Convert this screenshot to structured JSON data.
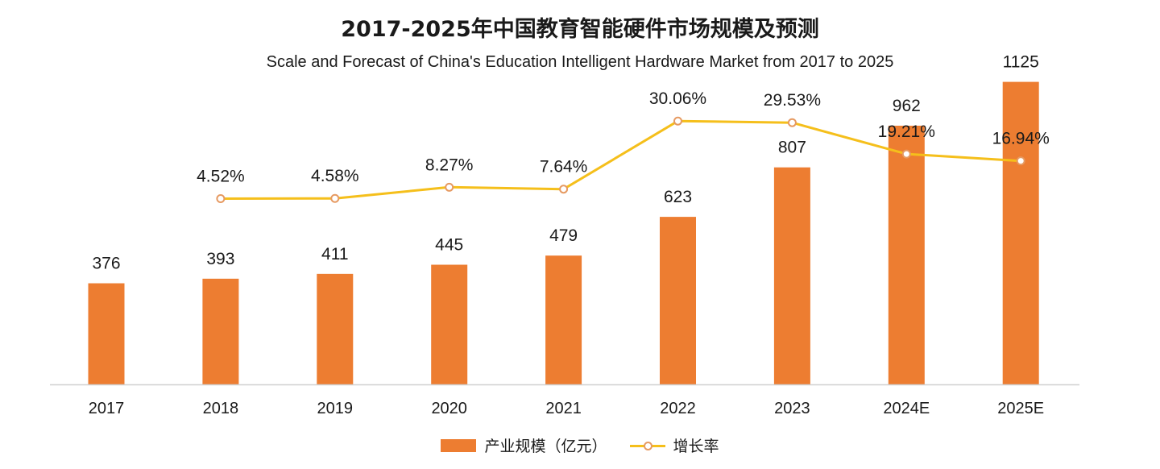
{
  "chart_data": {
    "type": "bar+line",
    "title": "2017-2025年中国教育智能硬件市场规模及预测",
    "subtitle": "Scale and Forecast of China's Education Intelligent Hardware Market from 2017 to 2025",
    "categories": [
      "2017",
      "2018",
      "2019",
      "2020",
      "2021",
      "2022",
      "2023",
      "2024E",
      "2025E"
    ],
    "series": [
      {
        "name": "产业规模（亿元）",
        "type": "bar",
        "values": [
          376,
          393,
          411,
          445,
          479,
          623,
          807,
          962,
          1125
        ],
        "labels": [
          "376",
          "393",
          "411",
          "445",
          "479",
          "623",
          "807",
          "962",
          "1125"
        ]
      },
      {
        "name": "增长率",
        "type": "line",
        "values": [
          null,
          4.52,
          4.58,
          8.27,
          7.64,
          30.06,
          29.53,
          19.21,
          16.94
        ],
        "labels": [
          "",
          "4.52%",
          "4.58%",
          "8.27%",
          "7.64%",
          "30.06%",
          "29.53%",
          "19.21%",
          "16.94%"
        ]
      }
    ],
    "xlabel": "",
    "ylabel": "",
    "grid": false,
    "legend_position": "bottom",
    "colors": {
      "bar": "#ED7D31",
      "line": "#F5BF1B",
      "marker": "#E69A62"
    }
  }
}
